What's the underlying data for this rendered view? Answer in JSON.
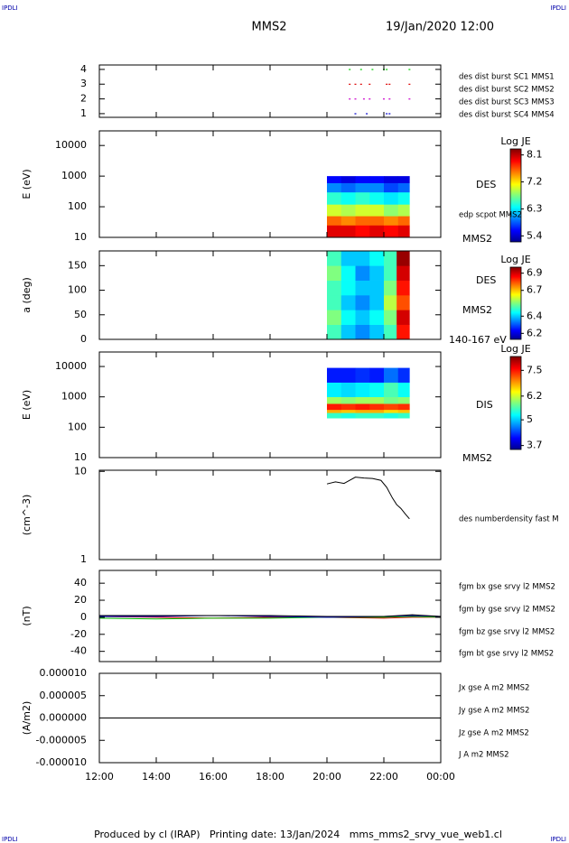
{
  "header": {
    "left_mark": "IPDLI",
    "right_mark": "IPDLI",
    "title": "MMS2",
    "date": "19/Jan/2020 12:00"
  },
  "footer": {
    "text": "Produced by cl (IRAP)   Printing date: 13/Jan/2024   mms_mms2_srvy_vue_web1.cl",
    "left_mark": "IPDLI",
    "right_mark": "IPDLI"
  },
  "chart_data": [
    {
      "type": "scatter",
      "xlim": [
        12,
        24
      ],
      "ylim": [
        0.75,
        4.3
      ],
      "yticks": [
        1,
        2,
        3,
        4
      ],
      "series": [
        {
          "name": "des dist burst SC1 MMS1",
          "color": "#0000cc",
          "x": [
            21.0,
            21.4,
            22.1,
            22.2
          ],
          "values": [
            1,
            1,
            1,
            1
          ]
        },
        {
          "name": "des dist burst SC2 MMS2",
          "color": "#cc00cc",
          "x": [
            20.8,
            21.0,
            21.3,
            21.5,
            22.0,
            22.2,
            22.9
          ],
          "values": [
            2,
            2,
            2,
            2,
            2,
            2,
            2
          ]
        },
        {
          "name": "des dist burst SC3 MMS3",
          "color": "#dd0000",
          "x": [
            20.8,
            21.0,
            21.2,
            21.5,
            22.1,
            22.2,
            22.9
          ],
          "values": [
            3,
            3,
            3,
            3,
            3,
            3,
            3
          ]
        },
        {
          "name": "des dist burst SC4 MMS4",
          "color": "#00cc00",
          "x": [
            20.8,
            21.2,
            21.6,
            22.0,
            22.1,
            22.9
          ],
          "values": [
            4,
            4,
            4,
            4,
            4,
            4
          ]
        }
      ]
    },
    {
      "type": "heatmap",
      "ylabel": "E (eV)",
      "log": true,
      "xlim": [
        12,
        24
      ],
      "ylim": [
        10,
        30000
      ],
      "yticks": [
        10,
        100,
        1000,
        10000
      ],
      "x_bins": [
        20,
        20.5,
        21,
        21.5,
        22,
        22.5,
        22.9
      ],
      "y_bins": [
        10,
        25,
        50,
        120,
        300,
        600,
        1000
      ],
      "z": [
        [
          8.0,
          8.0,
          7.9,
          8.0,
          7.9,
          8.0
        ],
        [
          7.6,
          7.5,
          7.6,
          7.6,
          7.5,
          7.6
        ],
        [
          7.0,
          6.9,
          7.0,
          7.0,
          6.8,
          6.9
        ],
        [
          6.5,
          6.4,
          6.5,
          6.4,
          6.3,
          6.4
        ],
        [
          6.0,
          5.9,
          6.0,
          6.0,
          5.8,
          5.9
        ],
        [
          5.6,
          5.5,
          5.6,
          5.6,
          5.5,
          5.5
        ]
      ],
      "colorbar": {
        "title": "Log JE",
        "zlim": [
          5.2,
          8.3
        ],
        "zticks": [
          5.4,
          6.3,
          7.2,
          8.1
        ]
      },
      "side_labels": [
        "DES",
        "edp scpot MMS2",
        "MMS2"
      ]
    },
    {
      "type": "heatmap",
      "ylabel": "a (deg)",
      "xlim": [
        12,
        24
      ],
      "ylim": [
        0,
        180
      ],
      "yticks": [
        0,
        50,
        100,
        150
      ],
      "x_bins": [
        20,
        20.5,
        21,
        21.5,
        22,
        22.45,
        22.9
      ],
      "y_bins": [
        0,
        30,
        60,
        90,
        120,
        150,
        180
      ],
      "z": [
        [
          6.5,
          6.4,
          6.35,
          6.4,
          6.5,
          6.85
        ],
        [
          6.55,
          6.45,
          6.4,
          6.45,
          6.55,
          6.9
        ],
        [
          6.5,
          6.4,
          6.35,
          6.4,
          6.6,
          6.8
        ],
        [
          6.5,
          6.45,
          6.4,
          6.4,
          6.55,
          6.85
        ],
        [
          6.55,
          6.45,
          6.35,
          6.4,
          6.5,
          6.9
        ],
        [
          6.5,
          6.4,
          6.4,
          6.45,
          6.5,
          6.95
        ]
      ],
      "colorbar": {
        "title": "Log JE",
        "zlim": [
          6.13,
          6.97
        ],
        "zticks": [
          6.2,
          6.4,
          6.7,
          6.9
        ]
      },
      "side_labels": [
        "DES",
        "MMS2",
        "140-167 eV"
      ]
    },
    {
      "type": "heatmap",
      "ylabel": "E (eV)",
      "log": true,
      "xlim": [
        12,
        24
      ],
      "ylim": [
        10,
        30000
      ],
      "yticks": [
        10,
        100,
        1000,
        10000
      ],
      "x_bins": [
        20,
        20.5,
        21,
        21.5,
        22,
        22.5,
        22.9
      ],
      "y_bins": [
        200,
        300,
        380,
        600,
        1000,
        3000,
        9000
      ],
      "z": [
        [
          5.5,
          5.4,
          5.5,
          5.5,
          5.4,
          5.5
        ],
        [
          6.8,
          6.7,
          6.8,
          6.8,
          6.6,
          6.7
        ],
        [
          7.5,
          7.4,
          7.5,
          7.4,
          7.3,
          7.4
        ],
        [
          6.0,
          5.9,
          6.0,
          6.0,
          5.8,
          5.9
        ],
        [
          5.2,
          5.1,
          5.2,
          5.3,
          5.6,
          5.3
        ],
        [
          4.2,
          4.2,
          4.3,
          4.2,
          4.6,
          4.3
        ]
      ],
      "colorbar": {
        "title": "Log JE",
        "zlim": [
          3.5,
          8.2
        ],
        "zticks": [
          3.7,
          5.0,
          6.2,
          7.5
        ]
      },
      "side_labels": [
        "DIS",
        "MMS2"
      ]
    },
    {
      "type": "line",
      "ylabel": "(cm^-3)",
      "log": true,
      "xlim": [
        12,
        24
      ],
      "ylim": [
        1,
        10.3
      ],
      "yticks": [
        1,
        10
      ],
      "series": [
        {
          "name": "des numberdensity fast M",
          "color": "#000000",
          "x": [
            20,
            20.3,
            20.6,
            21,
            21.3,
            21.6,
            21.9,
            22.1,
            22.3,
            22.45,
            22.6,
            22.75,
            22.9
          ],
          "values": [
            7.2,
            7.6,
            7.3,
            8.6,
            8.4,
            8.3,
            7.9,
            6.6,
            5.0,
            4.2,
            3.8,
            3.3,
            2.9
          ]
        }
      ]
    },
    {
      "type": "line",
      "ylabel": "(nT)",
      "xlim": [
        12,
        24
      ],
      "ylim": [
        -52,
        55
      ],
      "yticks": [
        40,
        20,
        0,
        -20,
        -40
      ],
      "series": [
        {
          "name": "fgm bx gse srvy l2 MMS2",
          "color": "#dd0000",
          "x": [
            12,
            14,
            16,
            18,
            20,
            22,
            23,
            24
          ],
          "values": [
            1,
            0,
            -1,
            0,
            0,
            -1,
            0,
            0
          ]
        },
        {
          "name": "fgm by gse srvy l2 MMS2",
          "color": "#00bb00",
          "x": [
            12,
            14,
            16,
            18,
            20,
            22,
            23,
            24
          ],
          "values": [
            -1,
            -2,
            -1,
            -1,
            0,
            0,
            1,
            0
          ]
        },
        {
          "name": "fgm bz gse srvy l2 MMS2",
          "color": "#0000cc",
          "x": [
            12,
            14,
            16,
            18,
            20,
            22,
            23,
            24
          ],
          "values": [
            1,
            1,
            2,
            1,
            0,
            1,
            2,
            1
          ]
        },
        {
          "name": "fgm bt gse srvy l2 MMS2",
          "color": "#000000",
          "x": [
            12,
            14,
            16,
            18,
            20,
            22,
            23,
            24
          ],
          "values": [
            2,
            2,
            2,
            2,
            1,
            1,
            3,
            1
          ]
        }
      ]
    },
    {
      "type": "line",
      "ylabel": "(A/m2)",
      "xlim": [
        12,
        24
      ],
      "ylim": [
        -1e-05,
        1e-05
      ],
      "yticks": [
        {
          "value": 1e-05,
          "label": "0.000010"
        },
        {
          "value": 5e-06,
          "label": "0.000005"
        },
        {
          "value": 0,
          "label": "0.000000"
        },
        {
          "value": -5e-06,
          "label": "-0.000005"
        },
        {
          "value": -1e-05,
          "label": "-0.000010"
        }
      ],
      "xticks": [
        {
          "value": 12,
          "label": "12:00"
        },
        {
          "value": 14,
          "label": "14:00"
        },
        {
          "value": 16,
          "label": "16:00"
        },
        {
          "value": 18,
          "label": "18:00"
        },
        {
          "value": 20,
          "label": "20:00"
        },
        {
          "value": 22,
          "label": "22:00"
        },
        {
          "value": 24,
          "label": "00:00"
        }
      ],
      "series": [
        {
          "name": "Jx gse A m2 MMS2",
          "color": "#dd0000",
          "x": [
            12,
            24
          ],
          "values": [
            0,
            0
          ]
        },
        {
          "name": "Jy gse A m2 MMS2",
          "color": "#66aa00",
          "x": [
            12,
            24
          ],
          "values": [
            0,
            0
          ]
        },
        {
          "name": "Jz gse A m2 MMS2",
          "color": "#0000cc",
          "x": [
            12,
            24
          ],
          "values": [
            0,
            0
          ]
        },
        {
          "name": "J A m2 MMS2",
          "color": "#000000",
          "x": [
            12,
            24
          ],
          "values": [
            0,
            0
          ]
        }
      ]
    }
  ]
}
